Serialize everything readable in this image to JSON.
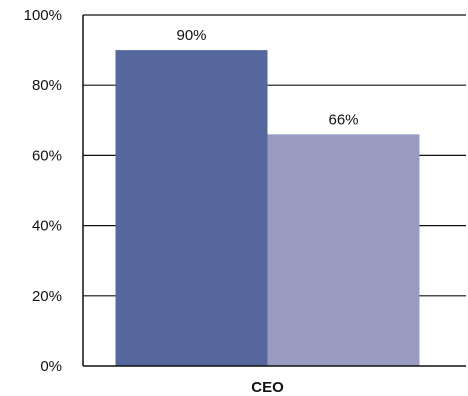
{
  "chart_data": {
    "type": "bar",
    "categories": [
      "CEO"
    ],
    "series": [
      {
        "values": [
          90
        ],
        "label": "90%",
        "color": "#55679d"
      },
      {
        "values": [
          66
        ],
        "label": "66%",
        "color": "#999cc0"
      }
    ],
    "yticks": [
      "0%",
      "20%",
      "40%",
      "60%",
      "80%",
      "100%"
    ],
    "ylim": [
      0,
      100
    ],
    "grid": true,
    "legend": "none"
  }
}
